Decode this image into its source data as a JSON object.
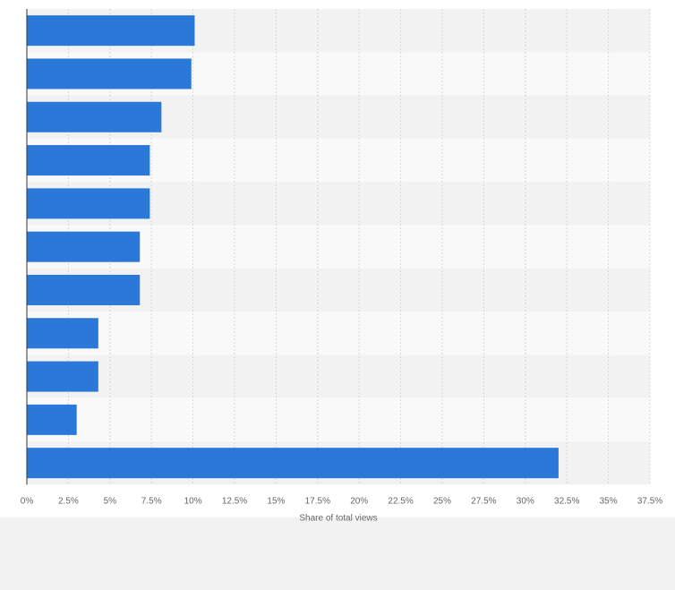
{
  "chart_data": {
    "type": "bar",
    "orientation": "horizontal",
    "categories": [
      "",
      "",
      "",
      "",
      "",
      "",
      "",
      "",
      "",
      "",
      ""
    ],
    "values": [
      10.1,
      9.9,
      8.1,
      7.4,
      7.4,
      6.8,
      6.8,
      4.3,
      4.3,
      3.0,
      32.0
    ],
    "xlabel": "Share of total views",
    "ylabel": "",
    "xlim": [
      0,
      37.5
    ],
    "xticks": [
      "0%",
      "2.5%",
      "5%",
      "7.5%",
      "10%",
      "12.5%",
      "15%",
      "17.5%",
      "20%",
      "22.5%",
      "25%",
      "27.5%",
      "30%",
      "32.5%",
      "35%",
      "37.5%"
    ],
    "grid": "vertical dashed",
    "bar_color": "#2a78d8",
    "band_colors": [
      "#f2f2f2",
      "#f9f9f9"
    ]
  }
}
